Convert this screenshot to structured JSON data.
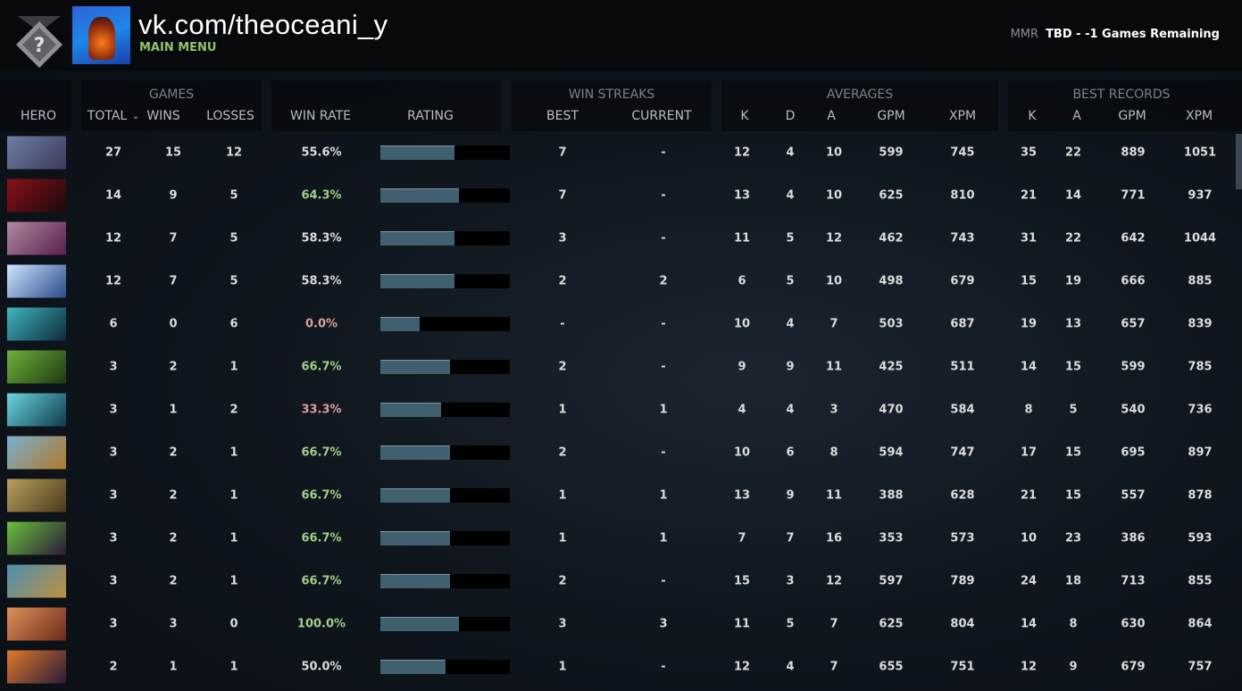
{
  "header": {
    "profile_name": "vk.com/theoceani_y",
    "main_menu": "MAIN MENU",
    "mmr_label": "MMR",
    "mmr_value": "TBD - -1 Games Remaining",
    "rank_icon": "unknown-rank-medal-icon"
  },
  "columns": {
    "hero": "HERO",
    "games": "GAMES",
    "total": "TOTAL",
    "sort_icon": "chevron-down-icon",
    "wins": "WINS",
    "losses": "LOSSES",
    "win_rate": "WIN RATE",
    "rating": "RATING",
    "win_streaks": "WIN STREAKS",
    "best": "BEST",
    "current": "CURRENT",
    "averages": "AVERAGES",
    "k": "K",
    "d": "D",
    "a": "A",
    "gpm": "GPM",
    "xpm": "XPM",
    "best_records": "BEST RECORDS",
    "bk": "K",
    "ba": "A",
    "bgpm": "GPM",
    "bxpm": "XPM"
  },
  "colors": {
    "win_rate_high": "#9fcf8a",
    "win_rate_low": "#d9a0a0",
    "win_rate_neutral": "#dcdcdc",
    "rating_fill": "#41606f"
  },
  "rows": [
    {
      "hero_colors": [
        "#6d7fa0",
        "#3b3a5e"
      ],
      "total": "27",
      "wins": "15",
      "losses": "12",
      "win_rate": "55.6%",
      "rating_pct": 57,
      "best": "7",
      "current": "-",
      "k": "12",
      "d": "4",
      "a": "10",
      "gpm": "599",
      "xpm": "745",
      "bk": "35",
      "ba": "22",
      "bgpm": "889",
      "bxpm": "1051"
    },
    {
      "hero_colors": [
        "#8a1018",
        "#1a0a0c"
      ],
      "total": "14",
      "wins": "9",
      "losses": "5",
      "win_rate": "64.3%",
      "rating_pct": 61,
      "best": "7",
      "current": "-",
      "k": "13",
      "d": "4",
      "a": "10",
      "gpm": "625",
      "xpm": "810",
      "bk": "21",
      "ba": "14",
      "bgpm": "771",
      "bxpm": "937"
    },
    {
      "hero_colors": [
        "#b08aa0",
        "#5a1e4a"
      ],
      "total": "12",
      "wins": "7",
      "losses": "5",
      "win_rate": "58.3%",
      "rating_pct": 57,
      "best": "3",
      "current": "-",
      "k": "11",
      "d": "5",
      "a": "12",
      "gpm": "462",
      "xpm": "743",
      "bk": "31",
      "ba": "22",
      "bgpm": "642",
      "bxpm": "1044"
    },
    {
      "hero_colors": [
        "#cfe6ff",
        "#2a4a8a"
      ],
      "total": "12",
      "wins": "7",
      "losses": "5",
      "win_rate": "58.3%",
      "rating_pct": 57,
      "best": "2",
      "current": "2",
      "k": "6",
      "d": "5",
      "a": "10",
      "gpm": "498",
      "xpm": "679",
      "bk": "15",
      "ba": "19",
      "bgpm": "666",
      "bxpm": "885"
    },
    {
      "hero_colors": [
        "#3fb6c0",
        "#0e2a3a"
      ],
      "total": "6",
      "wins": "0",
      "losses": "6",
      "win_rate": "0.0%",
      "rating_pct": 30,
      "best": "-",
      "current": "-",
      "k": "10",
      "d": "4",
      "a": "7",
      "gpm": "503",
      "xpm": "687",
      "bk": "19",
      "ba": "13",
      "bgpm": "657",
      "bxpm": "839"
    },
    {
      "hero_colors": [
        "#6fb03a",
        "#1e3a12"
      ],
      "total": "3",
      "wins": "2",
      "losses": "1",
      "win_rate": "66.7%",
      "rating_pct": 54,
      "best": "2",
      "current": "-",
      "k": "9",
      "d": "9",
      "a": "11",
      "gpm": "425",
      "xpm": "511",
      "bk": "14",
      "ba": "15",
      "bgpm": "599",
      "bxpm": "785"
    },
    {
      "hero_colors": [
        "#6ad6e0",
        "#0e3a4a"
      ],
      "total": "3",
      "wins": "1",
      "losses": "2",
      "win_rate": "33.3%",
      "rating_pct": 47,
      "best": "1",
      "current": "1",
      "k": "4",
      "d": "4",
      "a": "3",
      "gpm": "470",
      "xpm": "584",
      "bk": "8",
      "ba": "5",
      "bgpm": "540",
      "bxpm": "736"
    },
    {
      "hero_colors": [
        "#7ab0d0",
        "#b07a2a"
      ],
      "total": "3",
      "wins": "2",
      "losses": "1",
      "win_rate": "66.7%",
      "rating_pct": 54,
      "best": "2",
      "current": "-",
      "k": "10",
      "d": "6",
      "a": "8",
      "gpm": "594",
      "xpm": "747",
      "bk": "17",
      "ba": "15",
      "bgpm": "695",
      "bxpm": "897"
    },
    {
      "hero_colors": [
        "#b8a060",
        "#4a3a1a"
      ],
      "total": "3",
      "wins": "2",
      "losses": "1",
      "win_rate": "66.7%",
      "rating_pct": 54,
      "best": "1",
      "current": "1",
      "k": "13",
      "d": "9",
      "a": "11",
      "gpm": "388",
      "xpm": "628",
      "bk": "21",
      "ba": "15",
      "bgpm": "557",
      "bxpm": "878"
    },
    {
      "hero_colors": [
        "#6ac03a",
        "#2a1a3a"
      ],
      "total": "3",
      "wins": "2",
      "losses": "1",
      "win_rate": "66.7%",
      "rating_pct": 54,
      "best": "1",
      "current": "1",
      "k": "7",
      "d": "7",
      "a": "16",
      "gpm": "353",
      "xpm": "573",
      "bk": "10",
      "ba": "23",
      "bgpm": "386",
      "bxpm": "593"
    },
    {
      "hero_colors": [
        "#4a90b0",
        "#c09040"
      ],
      "total": "3",
      "wins": "2",
      "losses": "1",
      "win_rate": "66.7%",
      "rating_pct": 54,
      "best": "2",
      "current": "-",
      "k": "15",
      "d": "3",
      "a": "12",
      "gpm": "597",
      "xpm": "789",
      "bk": "24",
      "ba": "18",
      "bgpm": "713",
      "bxpm": "855"
    },
    {
      "hero_colors": [
        "#e0905a",
        "#6a2a1a"
      ],
      "total": "3",
      "wins": "3",
      "losses": "0",
      "win_rate": "100.0%",
      "rating_pct": 61,
      "best": "3",
      "current": "3",
      "k": "11",
      "d": "5",
      "a": "7",
      "gpm": "625",
      "xpm": "804",
      "bk": "14",
      "ba": "8",
      "bgpm": "630",
      "bxpm": "864"
    },
    {
      "hero_colors": [
        "#e07a2a",
        "#2a1a3a"
      ],
      "total": "2",
      "wins": "1",
      "losses": "1",
      "win_rate": "50.0%",
      "rating_pct": 50,
      "best": "1",
      "current": "-",
      "k": "12",
      "d": "4",
      "a": "7",
      "gpm": "655",
      "xpm": "751",
      "bk": "12",
      "ba": "9",
      "bgpm": "679",
      "bxpm": "757"
    }
  ]
}
